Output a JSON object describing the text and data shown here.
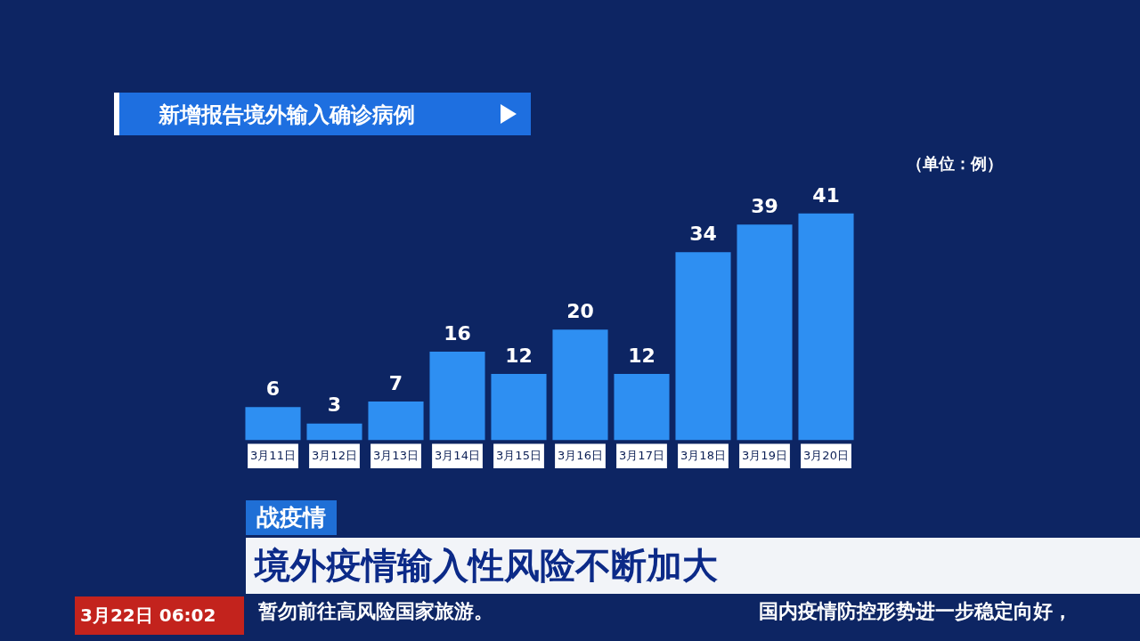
{
  "chart_data": {
    "type": "bar",
    "title": "新增报告境外输入确诊病例",
    "categories": [
      "3月11日",
      "3月12日",
      "3月13日",
      "3月14日",
      "3月15日",
      "3月16日",
      "3月17日",
      "3月18日",
      "3月19日",
      "3月20日"
    ],
    "values": [
      6,
      3,
      7,
      16,
      12,
      20,
      12,
      34,
      39,
      41
    ],
    "color": "#2e8ff2",
    "data_labels": true,
    "grid": false,
    "legend": false,
    "tick_labels": "x",
    "annotations": [
      "（单位：例）",
      "战疫情",
      "境外疫情输入性风险不断加大",
      "3月22日 06:02",
      "暂勿前往高风险国家旅游。",
      "国内疫情防控形势进一步稳定向好，"
    ]
  }
}
